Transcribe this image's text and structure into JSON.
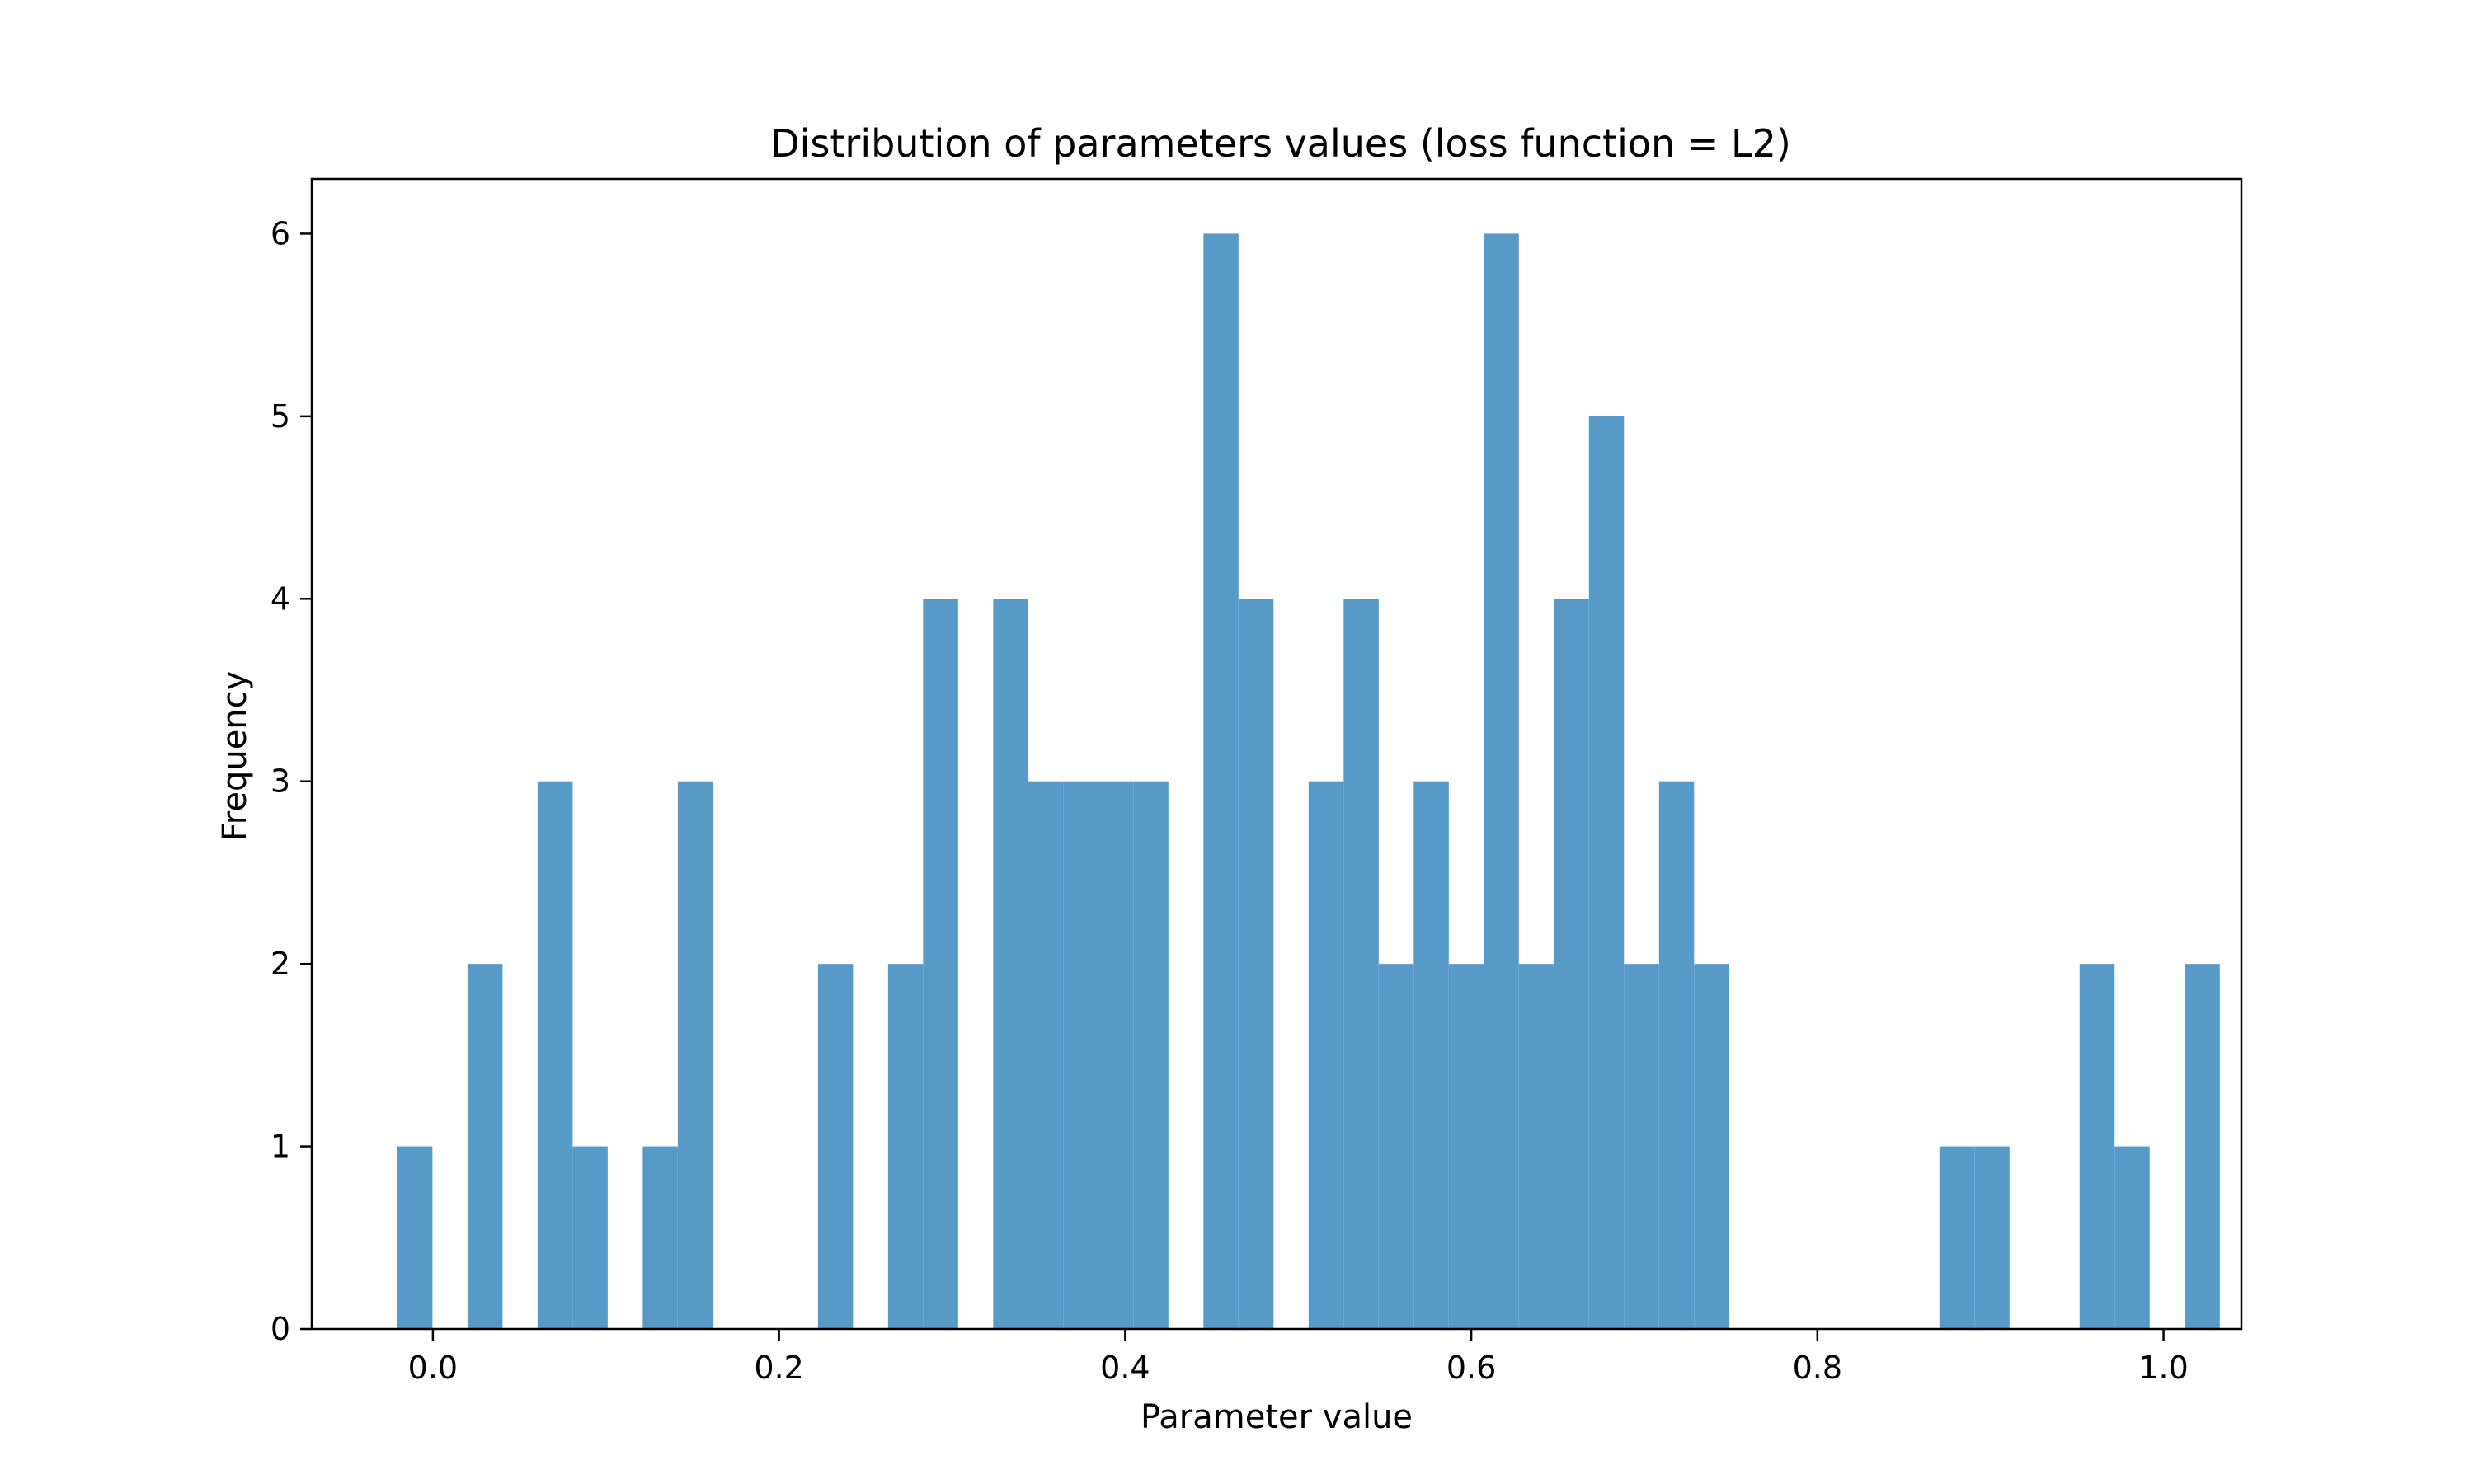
{
  "chart_data": {
    "type": "bar",
    "title": "Distribution of parameters values (loss function = L2)",
    "xlabel": "Parameter value",
    "ylabel": "Frequency",
    "xlim": [
      -0.07,
      1.045
    ],
    "ylim": [
      0,
      6.3
    ],
    "xticks": [
      "0.0",
      "0.2",
      "0.4",
      "0.6",
      "0.8",
      "1.0"
    ],
    "yticks": [
      "0",
      "1",
      "2",
      "3",
      "4",
      "5",
      "6"
    ],
    "bin_start": -0.0205,
    "bin_width": 0.02025,
    "counts": [
      1,
      0,
      2,
      0,
      3,
      1,
      0,
      1,
      3,
      0,
      0,
      0,
      2,
      0,
      2,
      4,
      0,
      4,
      3,
      3,
      3,
      3,
      0,
      6,
      4,
      0,
      3,
      4,
      2,
      3,
      2,
      6,
      2,
      4,
      5,
      2,
      3,
      2,
      0,
      0,
      0,
      0,
      0,
      0,
      1,
      1,
      0,
      0,
      2,
      1,
      0,
      2
    ],
    "bar_color": "#5799c7",
    "grid": false,
    "legend": "none"
  }
}
